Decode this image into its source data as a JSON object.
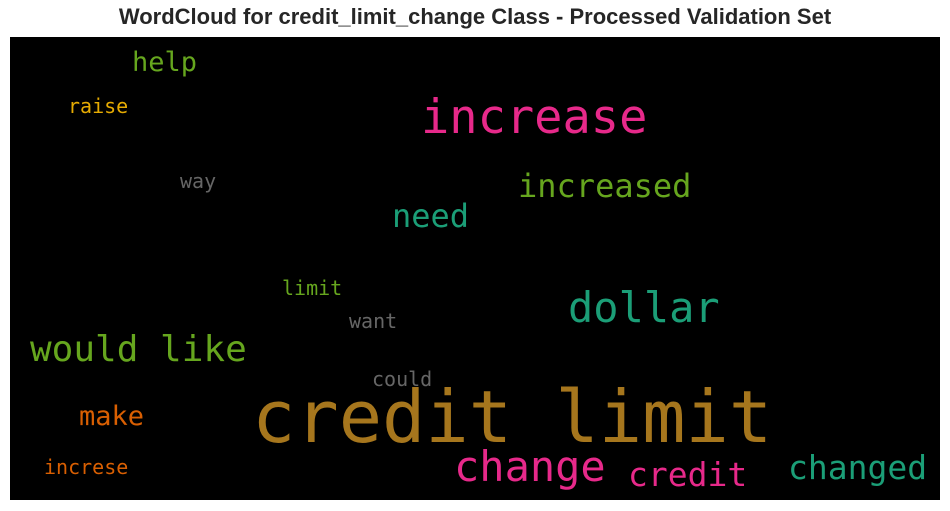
{
  "title": "WordCloud for credit_limit_change Class - Processed Validation Set",
  "words": [
    {
      "text": "help",
      "color": "#66a61e"
    },
    {
      "text": "raise",
      "color": "#e6ab02"
    },
    {
      "text": "increase",
      "color": "#e7298a"
    },
    {
      "text": "way",
      "color": "#666666"
    },
    {
      "text": "increased",
      "color": "#66a61e"
    },
    {
      "text": "need",
      "color": "#1b9e77"
    },
    {
      "text": "limit",
      "color": "#66a61e"
    },
    {
      "text": "dollar",
      "color": "#1b9e77"
    },
    {
      "text": "want",
      "color": "#666666"
    },
    {
      "text": "would like",
      "color": "#66a61e"
    },
    {
      "text": "could",
      "color": "#666666"
    },
    {
      "text": "make",
      "color": "#d95f02"
    },
    {
      "text": "credit limit",
      "color": "#a6761d"
    },
    {
      "text": "increse",
      "color": "#d95f02"
    },
    {
      "text": "change",
      "color": "#e7298a"
    },
    {
      "text": "credit",
      "color": "#e7298a"
    },
    {
      "text": "changed",
      "color": "#1b9e77"
    }
  ]
}
